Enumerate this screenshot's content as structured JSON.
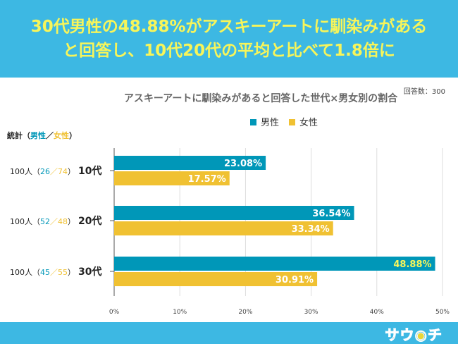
{
  "header": {
    "line1": "30代男性の48.88%がアスキーアートに馴染みがある",
    "line2": "と回答し、10代20代の平均と比べて1.8倍に"
  },
  "respondents": "回答数：300",
  "stat_label": {
    "prefix": "統計（",
    "male": "男性",
    "sep": "／",
    "female": "女性",
    "suffix": "）"
  },
  "logo": "サウチ",
  "colors": {
    "male": "#0097b8",
    "female": "#f0c132",
    "header": "#3db8e3"
  },
  "chart_data": {
    "type": "bar",
    "orientation": "horizontal",
    "title": "アスキーアートに馴染みがあると回答した世代×男女別の割合",
    "categories": [
      "10代",
      "20代",
      "30代"
    ],
    "category_counts": [
      {
        "total": "100人",
        "male": "26",
        "female": "74"
      },
      {
        "total": "100人",
        "male": "52",
        "female": "48"
      },
      {
        "total": "100人",
        "male": "45",
        "female": "55"
      }
    ],
    "series": [
      {
        "name": "男性",
        "values": [
          23.08,
          36.54,
          48.88
        ],
        "labels": [
          "23.08%",
          "36.54%",
          "48.88%"
        ]
      },
      {
        "name": "女性",
        "values": [
          17.57,
          33.34,
          30.91
        ],
        "labels": [
          "17.57%",
          "33.34%",
          "30.91%"
        ]
      }
    ],
    "xlim": [
      0,
      50
    ],
    "xticks": [
      "0%",
      "10%",
      "20%",
      "30%",
      "40%",
      "50%"
    ],
    "grid": true,
    "legend": "top"
  }
}
